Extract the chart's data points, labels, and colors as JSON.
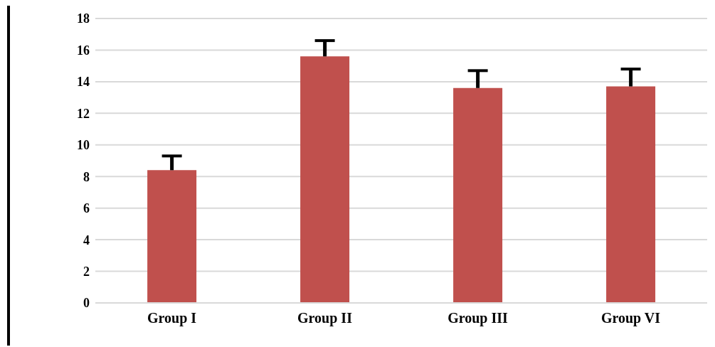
{
  "chart_data": {
    "type": "bar",
    "categories": [
      "Group I",
      "Group II",
      "Group III",
      "Group VI"
    ],
    "values": [
      8.4,
      15.6,
      13.6,
      13.7
    ],
    "errors": [
      [
        8.4,
        9.3
      ],
      [
        15.6,
        16.6
      ],
      [
        13.6,
        14.7
      ],
      [
        13.7,
        14.8
      ]
    ],
    "color": "#c0504d",
    "ylim": [
      0,
      18
    ],
    "yticks": [
      0,
      2,
      4,
      6,
      8,
      10,
      12,
      14,
      16,
      18
    ],
    "grid": "y"
  }
}
